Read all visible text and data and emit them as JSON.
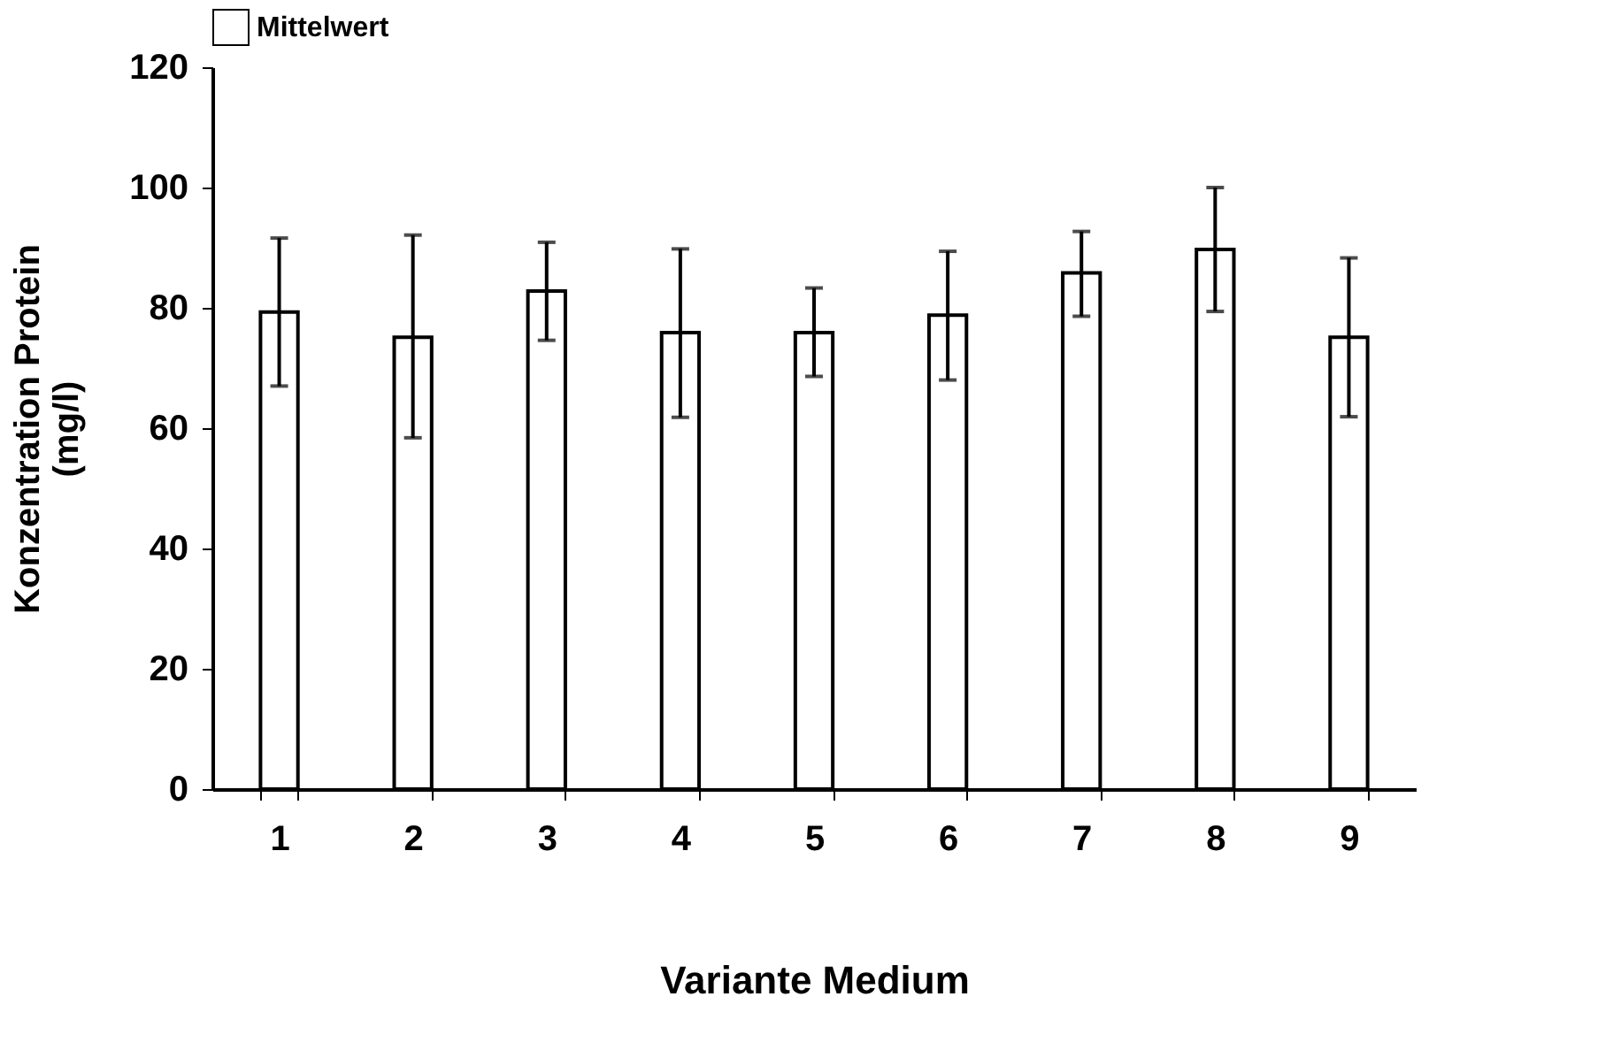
{
  "chart_data": {
    "type": "bar",
    "categories": [
      "1",
      "2",
      "3",
      "4",
      "5",
      "6",
      "7",
      "8",
      "9"
    ],
    "series": [
      {
        "name": "Mittelwert",
        "color": "#ffffff",
        "values": [
          79.3,
          75.1,
          82.8,
          75.9,
          75.9,
          78.8,
          85.8,
          89.7,
          75.1
        ],
        "errors": [
          [
            67.0,
            91.6
          ],
          [
            58.4,
            92.1
          ],
          [
            74.6,
            90.9
          ],
          [
            61.8,
            89.8
          ],
          [
            68.6,
            83.3
          ],
          [
            68.0,
            89.4
          ],
          [
            78.6,
            92.7
          ],
          [
            79.4,
            100.0
          ],
          [
            61.9,
            88.3
          ]
        ]
      }
    ],
    "xlabel": "Variante Medium",
    "ylabel": "Konzentration Protein\n(mg/l)",
    "ylim": [
      0,
      120
    ],
    "yticks": [
      0,
      20,
      40,
      60,
      80,
      100,
      120
    ],
    "grid": false,
    "legend": "top"
  }
}
